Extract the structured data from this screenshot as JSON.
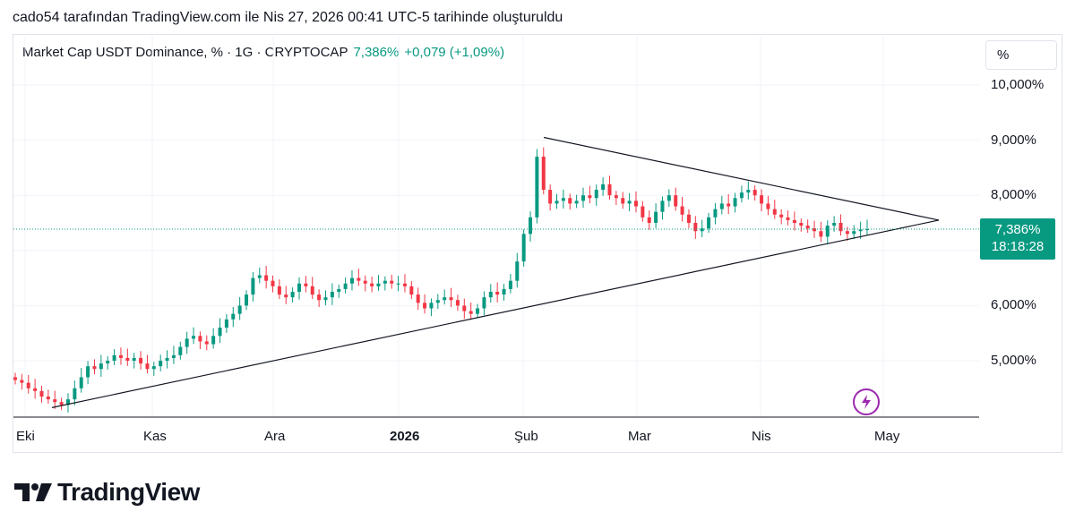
{
  "header": {
    "attribution": "cado54 tarafından TradingView.com ile Nis 27, 2026 00:41 UTC-5 tarihinde oluşturuldu"
  },
  "legend": {
    "symbol": "Market Cap USDT Dominance, % · 1G · CRYPTOCAP",
    "value": "7,386%",
    "change": "+0,079 (+1,09%)"
  },
  "scale_button": {
    "label": "%"
  },
  "price_label": {
    "value": "7,386%",
    "countdown": "18:18:28"
  },
  "logo": {
    "text": "TradingView"
  },
  "colors": {
    "up": "#089981",
    "down": "#f23645",
    "trendline": "#131722",
    "accent": "#9c27b0"
  },
  "chart_data": {
    "type": "candlestick",
    "title": "Market Cap USDT Dominance, % · 1G · CRYPTOCAP",
    "ylabel": "%",
    "y_ticks": [
      "10,000%",
      "9,000%",
      "8,000%",
      "6,000%",
      "5,000%"
    ],
    "y_tick_values": [
      10.0,
      9.0,
      8.0,
      6.0,
      5.0
    ],
    "x_ticks": [
      "Eki",
      "Kas",
      "Ara",
      "2026",
      "Şub",
      "Mar",
      "Nis",
      "May"
    ],
    "ylim": [
      4.0,
      10.4
    ],
    "last_value": 7.386,
    "close_series_approx": [
      4.65,
      4.6,
      4.5,
      4.45,
      4.35,
      4.3,
      4.25,
      4.2,
      4.3,
      4.5,
      4.7,
      4.9,
      4.85,
      4.95,
      5.0,
      5.1,
      5.05,
      5.0,
      5.05,
      4.95,
      4.85,
      4.9,
      5.0,
      5.05,
      5.1,
      5.25,
      5.4,
      5.45,
      5.35,
      5.3,
      5.45,
      5.6,
      5.75,
      5.85,
      6.0,
      6.2,
      6.5,
      6.55,
      6.45,
      6.35,
      6.2,
      6.15,
      6.25,
      6.4,
      6.35,
      6.2,
      6.1,
      6.15,
      6.25,
      6.3,
      6.4,
      6.5,
      6.45,
      6.4,
      6.35,
      6.4,
      6.45,
      6.4,
      6.4,
      6.35,
      6.2,
      6.05,
      5.95,
      6.05,
      6.1,
      6.15,
      6.1,
      6.0,
      5.9,
      5.85,
      5.95,
      6.15,
      6.25,
      6.2,
      6.3,
      6.45,
      6.8,
      7.3,
      7.6,
      8.7,
      8.1,
      7.85,
      7.9,
      7.95,
      7.85,
      7.9,
      8.0,
      7.95,
      8.1,
      8.2,
      8.0,
      7.95,
      7.85,
      7.9,
      7.8,
      7.6,
      7.5,
      7.7,
      7.9,
      8.0,
      7.8,
      7.65,
      7.5,
      7.35,
      7.4,
      7.6,
      7.75,
      7.85,
      7.8,
      7.95,
      8.05,
      8.1,
      8.0,
      7.85,
      7.75,
      7.65,
      7.6,
      7.55,
      7.5,
      7.45,
      7.4,
      7.35,
      7.25,
      7.45,
      7.5,
      7.35,
      7.3,
      7.35,
      7.38,
      7.386
    ],
    "trendlines": [
      {
        "name": "upper",
        "points": [
          [
            "Şub",
            9.05
          ],
          [
            "May",
            7.55
          ]
        ]
      },
      {
        "name": "lower",
        "points": [
          [
            "Eki",
            4.15
          ],
          [
            "May",
            7.55
          ]
        ]
      }
    ],
    "grid": true
  }
}
